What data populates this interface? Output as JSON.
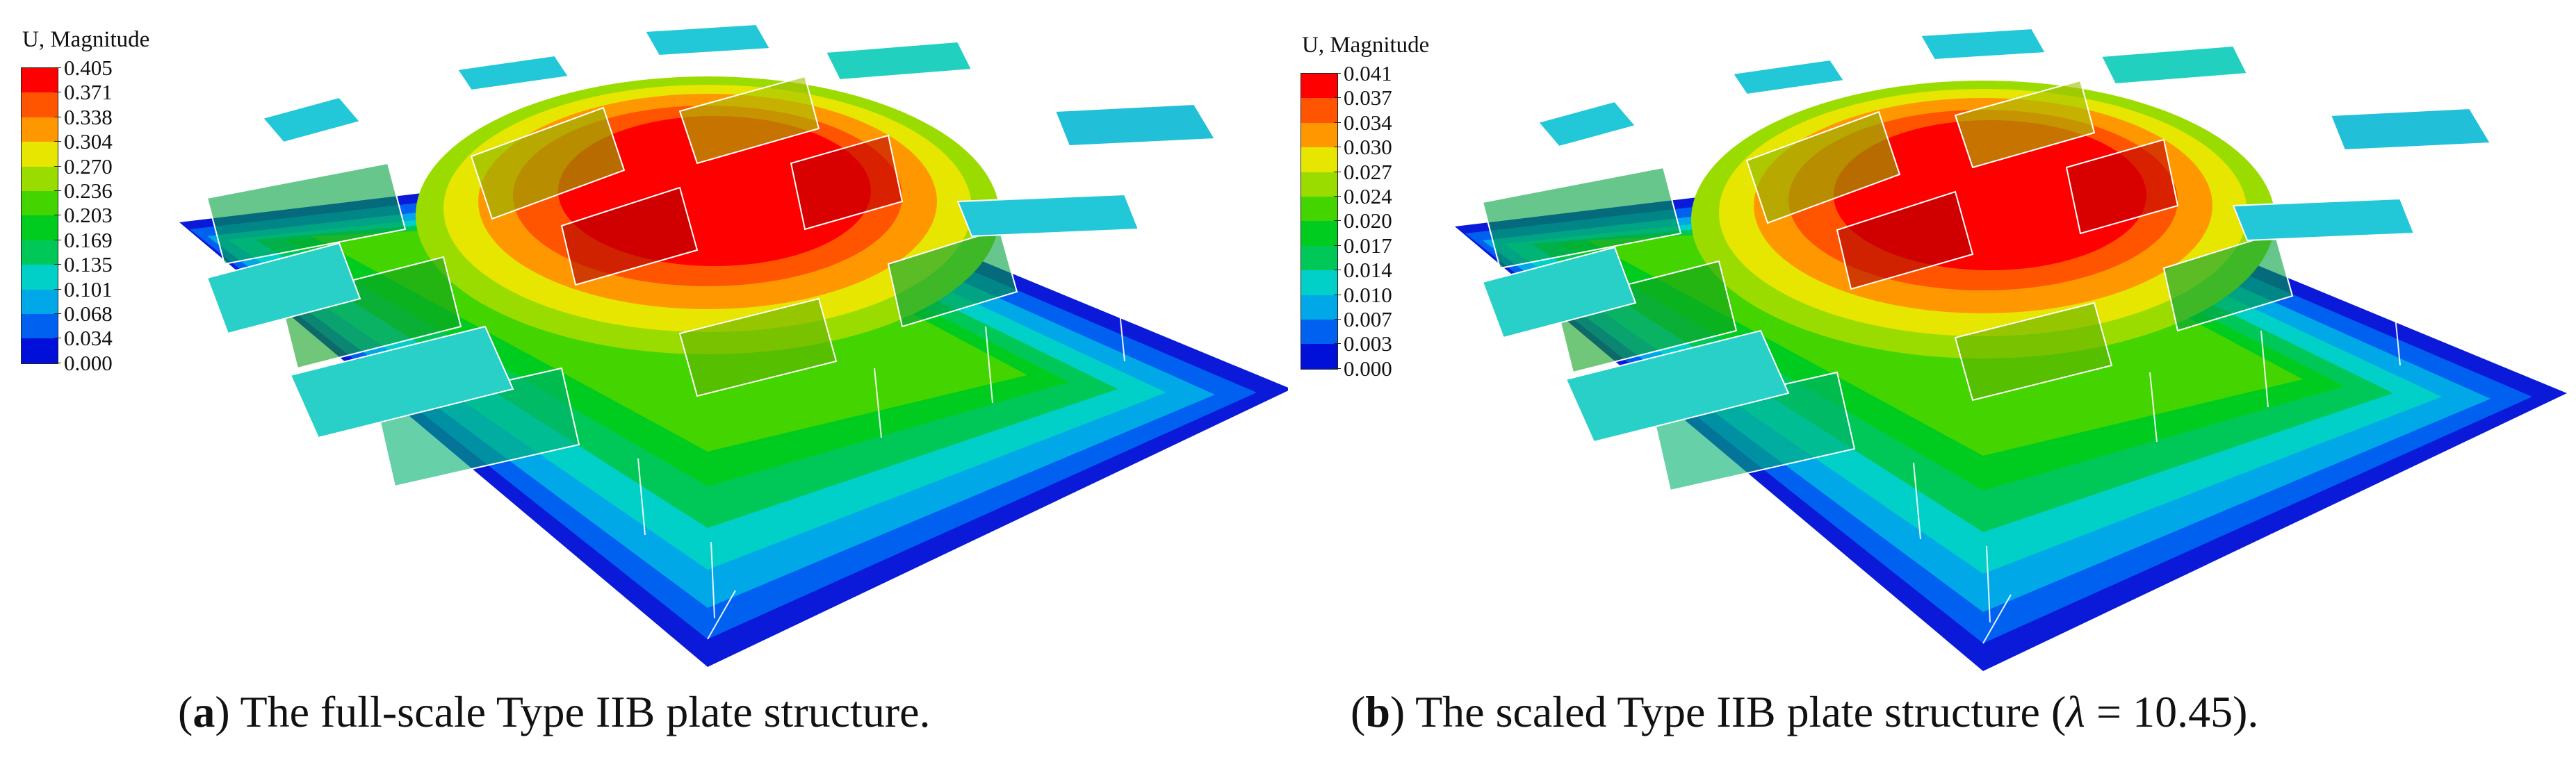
{
  "legend_colors": [
    "#ff0000",
    "#ff5400",
    "#ff9800",
    "#e6e600",
    "#9bdc00",
    "#44d400",
    "#00cc1f",
    "#00c858",
    "#00d0c8",
    "#00a8e8",
    "#0060f0",
    "#0010d8"
  ],
  "panel_a": {
    "legend_title": "U, Magnitude",
    "legend_values": [
      "0.405",
      "0.371",
      "0.338",
      "0.304",
      "0.270",
      "0.236",
      "0.203",
      "0.169",
      "0.135",
      "0.101",
      "0.068",
      "0.034",
      "0.000"
    ],
    "caption_letter": "a",
    "caption_text": "The full-scale Type IIB plate structure."
  },
  "panel_b": {
    "legend_title": "U, Magnitude",
    "legend_values": [
      "0.041",
      "0.037",
      "0.034",
      "0.030",
      "0.027",
      "0.024",
      "0.020",
      "0.017",
      "0.014",
      "0.010",
      "0.007",
      "0.003",
      "0.000"
    ],
    "caption_letter": "b",
    "caption_text": "The scaled Type IIB plate structure (",
    "caption_lambda": "λ",
    "caption_value": " = 10.45)."
  }
}
